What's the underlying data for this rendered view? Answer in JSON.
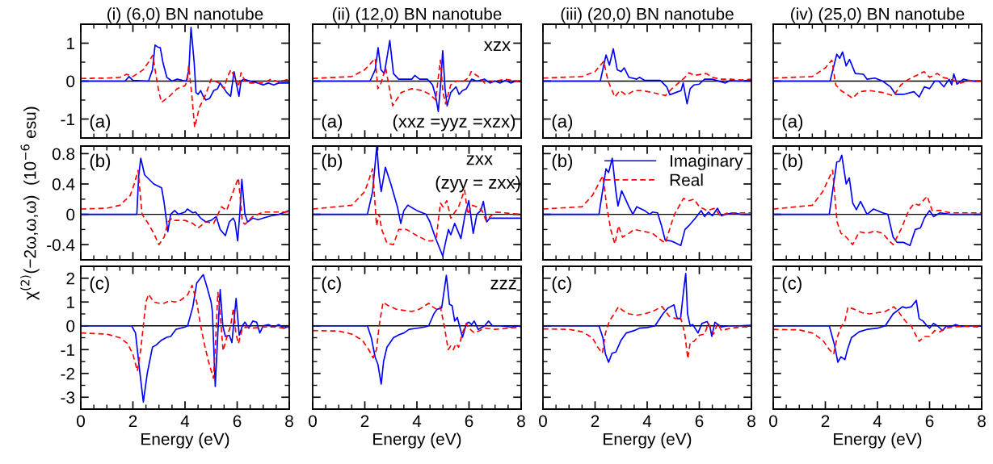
{
  "chart_data": [
    {
      "type": "line",
      "title": "(i) (6,0) BN nanotube",
      "xlim": [
        0,
        8
      ],
      "xticks": [
        0,
        2,
        4,
        6,
        8
      ],
      "ylim": [
        -1.5,
        1.5
      ],
      "yticks": [
        -1,
        0,
        1
      ],
      "tick_labels": "y",
      "legend": false,
      "ref_lines": [
        {
          "axis": "y",
          "value": 0,
          "color": "#000000"
        }
      ],
      "annotations": [
        "(a)"
      ],
      "series": [
        {
          "color": "#0000ff",
          "line_style": "solid",
          "x": [
            0,
            1.7,
            1.85,
            2.0,
            2.6,
            2.75,
            2.85,
            2.95,
            3.05,
            3.15,
            3.3,
            3.5,
            3.7,
            3.9,
            4.05,
            4.15,
            4.23,
            4.35,
            4.42,
            4.5,
            4.6,
            4.7,
            4.8,
            4.95,
            5.1,
            5.25,
            5.35,
            5.45,
            5.6,
            5.75,
            5.88,
            5.98,
            6.07,
            6.15,
            6.25,
            6.5,
            6.8,
            7.0,
            7.2,
            7.4,
            7.6,
            7.8,
            8.0
          ],
          "values": [
            0,
            0,
            0.12,
            0.02,
            0,
            0.3,
            0.95,
            0.9,
            0.88,
            0.5,
            0.1,
            0,
            0.05,
            0.02,
            0,
            0.3,
            1.42,
            0.5,
            -0.3,
            -0.35,
            -0.25,
            -0.4,
            -0.5,
            -0.45,
            -0.25,
            -0.2,
            -0.05,
            -0.15,
            -0.3,
            -0.4,
            0.25,
            -0.1,
            -0.4,
            0,
            0.05,
            0,
            -0.05,
            -0.1,
            -0.05,
            -0.1,
            -0.05,
            -0.05,
            -0.05
          ]
        },
        {
          "color": "#ff0000",
          "line_style": "dashed",
          "x": [
            0,
            1.0,
            1.5,
            1.76,
            2.0,
            2.4,
            2.6,
            2.76,
            2.9,
            3.0,
            3.1,
            3.4,
            3.7,
            4.0,
            4.08,
            4.14,
            4.25,
            4.37,
            4.55,
            4.8,
            5.0,
            5.3,
            5.5,
            5.62,
            5.76,
            5.95,
            6.05,
            6.15,
            6.3,
            6.5,
            7.0,
            7.3,
            7.6,
            8.0
          ],
          "values": [
            0.07,
            0.08,
            0.1,
            0.18,
            0.12,
            0.3,
            0.5,
            0.68,
            0.1,
            -0.3,
            -0.56,
            -0.4,
            -0.2,
            -0.12,
            0,
            0.4,
            -0.3,
            -1.22,
            -0.7,
            -0.35,
            0.05,
            -0.05,
            -0.2,
            0.1,
            0.3,
            0.05,
            -0.15,
            0.22,
            0,
            -0.05,
            -0.05,
            0.05,
            -0.02,
            0.05
          ]
        }
      ]
    },
    {
      "type": "line",
      "title": "(ii) (12,0) BN nanotube",
      "xlim": [
        0,
        8
      ],
      "xticks": [
        0,
        2,
        4,
        6,
        8
      ],
      "ylim": [
        -1.5,
        1.5
      ],
      "yticks": [
        -1,
        0,
        1
      ],
      "tick_labels": false,
      "legend": false,
      "ref_lines": [
        {
          "axis": "y",
          "value": 0,
          "color": "#000000"
        }
      ],
      "annotations": [
        "(a)",
        "xzx",
        "(xxz =yyz =xzx)"
      ],
      "series": [
        {
          "color": "#0000ff",
          "line_style": "solid",
          "x": [
            0,
            2.2,
            2.4,
            2.51,
            2.62,
            2.75,
            2.96,
            3.1,
            3.3,
            3.8,
            3.92,
            4.1,
            4.4,
            4.6,
            4.72,
            4.82,
            4.92,
            4.99,
            5.08,
            5.16,
            5.3,
            5.5,
            5.62,
            5.75,
            5.9,
            6.1,
            6.3,
            6.6,
            6.8,
            7.0,
            7.2,
            7.4,
            7.6,
            7.8,
            8.0
          ],
          "values": [
            0,
            0,
            0.3,
            0.88,
            0.3,
            0.2,
            1.07,
            0.2,
            0.05,
            0.05,
            0.15,
            0.05,
            0.05,
            -0.1,
            -0.4,
            -0.8,
            0,
            0.8,
            -0.2,
            -0.65,
            -0.3,
            -0.15,
            -0.35,
            -0.25,
            -0.2,
            0.05,
            0,
            0.05,
            -0.05,
            0,
            -0.05,
            0.02,
            -0.05,
            0,
            -0.02
          ]
        },
        {
          "color": "#ff0000",
          "line_style": "dashed",
          "x": [
            0,
            1.5,
            2.0,
            2.4,
            2.5,
            2.6,
            2.8,
            3.0,
            3.07,
            3.4,
            3.8,
            4.2,
            4.5,
            4.72,
            4.9,
            5.0,
            5.1,
            5.3,
            5.5,
            5.8,
            6.0,
            6.08,
            6.4,
            6.6,
            7.0,
            7.4,
            7.8,
            8.0
          ],
          "values": [
            0.07,
            0.12,
            0.3,
            0.6,
            -0.2,
            -0.1,
            0.35,
            -0.4,
            -0.65,
            -0.3,
            -0.2,
            -0.25,
            -0.35,
            -0.5,
            0.55,
            -0.3,
            -0.6,
            -0.1,
            0,
            0,
            0.1,
            0.25,
            0.1,
            -0.05,
            0,
            0.05,
            0,
            0
          ]
        }
      ]
    },
    {
      "type": "line",
      "title": "(iii) (20,0) BN nanotube",
      "xlim": [
        0,
        8
      ],
      "xticks": [
        0,
        2,
        4,
        6,
        8
      ],
      "ylim": [
        -1.5,
        1.5
      ],
      "yticks": [
        -1,
        0,
        1
      ],
      "tick_labels": false,
      "legend": false,
      "ref_lines": [
        {
          "axis": "y",
          "value": 0,
          "color": "#000000"
        }
      ],
      "annotations": [
        "(a)"
      ],
      "series": [
        {
          "color": "#0000ff",
          "line_style": "solid",
          "x": [
            0,
            2.2,
            2.42,
            2.55,
            2.7,
            2.85,
            3.0,
            3.12,
            3.3,
            3.6,
            3.7,
            3.9,
            4.5,
            4.75,
            4.87,
            5.1,
            5.3,
            5.38,
            5.53,
            5.65,
            5.8,
            6.0,
            6.2,
            6.5,
            7.0,
            7.2,
            7.5,
            8.0
          ],
          "values": [
            0,
            0,
            0.69,
            0.42,
            0.85,
            0.3,
            0.25,
            0.35,
            0.1,
            0.05,
            0.1,
            0.02,
            0.02,
            -0.15,
            -0.36,
            -0.3,
            -0.25,
            -0.05,
            -0.6,
            -0.2,
            -0.1,
            -0.08,
            0.05,
            0.05,
            -0.05,
            0.02,
            0,
            0.02
          ]
        },
        {
          "color": "#ff0000",
          "line_style": "dashed",
          "x": [
            0,
            1.5,
            2.0,
            2.33,
            2.5,
            2.76,
            2.95,
            3.2,
            3.5,
            3.8,
            4.2,
            4.5,
            4.7,
            4.95,
            5.2,
            5.45,
            5.61,
            5.8,
            6.27,
            6.5,
            6.8,
            7.2,
            7.6,
            8.0
          ],
          "values": [
            0.08,
            0.12,
            0.25,
            0.52,
            0,
            -0.42,
            -0.25,
            -0.37,
            -0.25,
            -0.25,
            -0.3,
            -0.35,
            -0.38,
            -0.2,
            -0.05,
            0.1,
            0.22,
            0.15,
            0.2,
            0.1,
            0.05,
            0.05,
            0.03,
            0.05
          ]
        }
      ]
    },
    {
      "type": "line",
      "title": "(iv) (25,0) BN nanotube",
      "xlim": [
        0,
        8
      ],
      "xticks": [
        0,
        2,
        4,
        6,
        8
      ],
      "ylim": [
        -1.5,
        1.5
      ],
      "yticks": [
        -1,
        0,
        1
      ],
      "tick_labels": false,
      "legend": false,
      "ref_lines": [
        {
          "axis": "y",
          "value": 0,
          "color": "#000000"
        }
      ],
      "annotations": [
        "(a)"
      ],
      "series": [
        {
          "color": "#0000ff",
          "line_style": "solid",
          "x": [
            0,
            2.18,
            2.44,
            2.55,
            2.66,
            2.8,
            2.93,
            3.15,
            3.46,
            3.6,
            3.9,
            4.2,
            4.5,
            4.7,
            5.0,
            5.4,
            5.6,
            5.8,
            6.0,
            6.2,
            6.35,
            6.55,
            6.75,
            6.85,
            6.93,
            7.05,
            7.3,
            7.6,
            8.0
          ],
          "values": [
            0,
            0,
            0.71,
            0.6,
            0.77,
            0.4,
            0.57,
            0.2,
            0.18,
            0.05,
            0.08,
            0,
            -0.15,
            -0.35,
            -0.35,
            -0.28,
            -0.42,
            -0.15,
            -0.2,
            0,
            0,
            -0.15,
            0.05,
            -0.1,
            0.19,
            -0.08,
            0.05,
            0,
            0
          ]
        },
        {
          "color": "#ff0000",
          "line_style": "dashed",
          "x": [
            0,
            1.5,
            2.0,
            2.25,
            2.4,
            2.6,
            3.05,
            3.3,
            3.7,
            4.2,
            4.62,
            4.9,
            5.2,
            5.5,
            5.79,
            6.0,
            6.3,
            6.5,
            6.8,
            7.2,
            7.5,
            8.0
          ],
          "values": [
            0.08,
            0.12,
            0.35,
            0.55,
            -0.1,
            -0.25,
            -0.45,
            -0.28,
            -0.25,
            -0.3,
            -0.39,
            -0.1,
            0.05,
            0.15,
            0.25,
            0.1,
            0.2,
            0.1,
            0.05,
            -0.05,
            0.02,
            0
          ]
        }
      ]
    },
    {
      "type": "line",
      "ylabel": "χ$^{(2)}$(−2ω,ω,ω)  (10$^{−6}$ esu)",
      "xlim": [
        0,
        8
      ],
      "xticks": [
        0,
        2,
        4,
        6,
        8
      ],
      "ylim": [
        -0.6,
        0.9
      ],
      "yticks": [
        -0.4,
        0,
        0.4,
        0.8
      ],
      "tick_labels": "y",
      "legend": false,
      "ref_lines": [
        {
          "axis": "y",
          "value": 0,
          "color": "#000000"
        }
      ],
      "annotations": [
        "(b)"
      ],
      "series": [
        {
          "color": "#0000ff",
          "line_style": "solid",
          "x": [
            0,
            2.05,
            2.15,
            2.22,
            2.3,
            2.45,
            2.8,
            3.1,
            3.2,
            3.34,
            3.45,
            3.6,
            3.75,
            4.0,
            4.09,
            4.3,
            4.4,
            4.6,
            4.8,
            5.0,
            5.2,
            5.35,
            5.55,
            5.7,
            5.85,
            5.92,
            6.02,
            6.1,
            6.18,
            6.3,
            6.4,
            6.6,
            6.8,
            7.0,
            7.3,
            7.6,
            8.0
          ],
          "values": [
            0,
            0,
            0,
            0.5,
            0.74,
            0.52,
            0.4,
            0.35,
            0.15,
            -0.23,
            0,
            0.05,
            0,
            0.03,
            0.07,
            0.02,
            0.03,
            -0.05,
            -0.1,
            -0.08,
            -0.03,
            -0.2,
            -0.28,
            -0.1,
            -0.05,
            -0.1,
            -0.35,
            0,
            0.46,
            0,
            -0.1,
            -0.05,
            -0.07,
            -0.05,
            -0.02,
            0,
            0.05
          ]
        },
        {
          "color": "#ff0000",
          "line_style": "dashed",
          "x": [
            0,
            1.0,
            1.5,
            1.9,
            2.05,
            2.2,
            2.35,
            2.55,
            2.8,
            3.0,
            3.2,
            3.35,
            3.5,
            3.6,
            4.0,
            4.3,
            4.5,
            4.8,
            5.1,
            5.4,
            5.6,
            5.75,
            5.9,
            6.05,
            6.2,
            6.3,
            6.6,
            6.8,
            7.0,
            7.5,
            8.0
          ],
          "values": [
            0.07,
            0.08,
            0.12,
            0.25,
            0.4,
            0.58,
            0,
            -0.1,
            -0.25,
            -0.4,
            -0.3,
            -0.1,
            -0.05,
            -0.08,
            -0.08,
            -0.12,
            -0.18,
            -0.1,
            -0.12,
            0.1,
            0.05,
            0.2,
            0.35,
            0.48,
            -0.1,
            -0.13,
            -0.03,
            0,
            0.03,
            0.03,
            0.03
          ]
        }
      ]
    },
    {
      "type": "line",
      "xlim": [
        0,
        8
      ],
      "xticks": [
        0,
        2,
        4,
        6,
        8
      ],
      "ylim": [
        -0.6,
        0.9
      ],
      "yticks": [
        -0.4,
        0,
        0.4,
        0.8
      ],
      "tick_labels": false,
      "legend": false,
      "ref_lines": [
        {
          "axis": "y",
          "value": 0,
          "color": "#000000"
        }
      ],
      "annotations": [
        "(b)",
        "zxx",
        "(zyy = zxx)"
      ],
      "series": [
        {
          "color": "#0000ff",
          "line_style": "solid",
          "x": [
            0,
            2.1,
            2.3,
            2.46,
            2.55,
            2.63,
            2.79,
            3.0,
            3.25,
            3.38,
            3.5,
            3.65,
            4.0,
            4.35,
            4.5,
            4.7,
            4.99,
            5.08,
            5.21,
            5.3,
            5.45,
            5.69,
            5.85,
            5.99,
            6.16,
            6.3,
            6.45,
            6.55,
            6.68,
            6.8,
            7.2,
            8.0
          ],
          "values": [
            0,
            0,
            0.3,
            0.9,
            0.5,
            0.3,
            0.62,
            0.4,
            0.1,
            -0.12,
            0.05,
            0.12,
            0.05,
            0,
            -0.1,
            -0.3,
            -0.55,
            -0.4,
            -0.2,
            -0.27,
            -0.12,
            -0.32,
            0,
            0.18,
            -0.25,
            0,
            0.05,
            0.17,
            -0.1,
            -0.05,
            -0.05,
            -0.05
          ]
        },
        {
          "color": "#ff0000",
          "line_style": "dashed",
          "x": [
            0,
            1.5,
            2.0,
            2.3,
            2.45,
            2.55,
            2.65,
            2.85,
            3.1,
            3.3,
            3.6,
            4.0,
            4.4,
            4.6,
            4.75,
            4.9,
            5.0,
            5.15,
            5.3,
            5.6,
            5.83,
            5.95,
            6.1,
            6.3,
            6.5,
            6.65,
            7.0,
            8.0
          ],
          "values": [
            0.07,
            0.12,
            0.3,
            0.6,
            -0.15,
            0,
            -0.2,
            -0.38,
            -0.4,
            -0.2,
            -0.2,
            -0.28,
            -0.35,
            -0.35,
            -0.3,
            0.15,
            0.1,
            0.18,
            -0.05,
            0.1,
            0.32,
            0,
            0.12,
            0.1,
            0.05,
            -0.08,
            0.03,
            0
          ]
        }
      ]
    },
    {
      "type": "line",
      "xlim": [
        0,
        8
      ],
      "xticks": [
        0,
        2,
        4,
        6,
        8
      ],
      "ylim": [
        -0.6,
        0.9
      ],
      "yticks": [
        -0.4,
        0,
        0.4,
        0.8
      ],
      "tick_labels": false,
      "legend": "top right",
      "ref_lines": [
        {
          "axis": "y",
          "value": 0,
          "color": "#000000"
        }
      ],
      "annotations": [
        "(b)"
      ],
      "series": [
        {
          "name": "Imaginary",
          "color": "#0000ff",
          "line_style": "solid",
          "x": [
            0,
            2.15,
            2.42,
            2.52,
            2.66,
            2.8,
            2.88,
            3.02,
            3.3,
            3.45,
            3.6,
            3.9,
            4.1,
            4.2,
            4.4,
            4.55,
            4.69,
            4.9,
            5.05,
            5.29,
            5.45,
            5.6,
            5.85,
            6.07,
            6.2,
            6.35,
            6.5,
            6.7,
            6.85,
            7.0,
            7.3,
            7.6,
            8.0
          ],
          "values": [
            0,
            0,
            0.6,
            0.55,
            0.74,
            0.3,
            0.11,
            0.31,
            0.1,
            0,
            0.1,
            0.05,
            0,
            0.03,
            0.02,
            -0.15,
            -0.34,
            -0.35,
            -0.37,
            -0.41,
            -0.2,
            -0.15,
            -0.05,
            0.05,
            -0.03,
            0.03,
            -0.02,
            0.08,
            -0.02,
            0,
            0.02,
            0,
            0
          ]
        },
        {
          "name": "Real",
          "color": "#ff0000",
          "line_style": "dashed",
          "x": [
            0,
            1.5,
            1.9,
            2.3,
            2.45,
            2.6,
            2.76,
            2.9,
            3.05,
            3.3,
            3.5,
            3.8,
            4.2,
            4.57,
            4.7,
            4.9,
            5.05,
            5.39,
            5.6,
            5.8,
            6.0,
            6.3,
            6.6,
            6.8,
            7.1,
            7.5,
            8.0
          ],
          "values": [
            0.07,
            0.1,
            0.25,
            0.51,
            0.1,
            -0.2,
            -0.39,
            -0.15,
            -0.3,
            -0.25,
            -0.2,
            -0.22,
            -0.25,
            -0.35,
            -0.38,
            -0.15,
            0,
            0.21,
            0.18,
            0.2,
            0.1,
            0.05,
            0.08,
            -0.02,
            0.02,
            0.02,
            0.02
          ]
        }
      ]
    },
    {
      "type": "line",
      "xlim": [
        0,
        8
      ],
      "xticks": [
        0,
        2,
        4,
        6,
        8
      ],
      "ylim": [
        -0.6,
        0.9
      ],
      "yticks": [
        -0.4,
        0,
        0.4,
        0.8
      ],
      "tick_labels": false,
      "legend": false,
      "ref_lines": [
        {
          "axis": "y",
          "value": 0,
          "color": "#000000"
        }
      ],
      "annotations": [
        "(b)"
      ],
      "series": [
        {
          "color": "#0000ff",
          "line_style": "solid",
          "x": [
            0,
            2.15,
            2.44,
            2.55,
            2.63,
            2.8,
            2.92,
            3.05,
            3.19,
            3.35,
            3.6,
            3.85,
            4.2,
            4.4,
            4.6,
            4.75,
            5.0,
            5.25,
            5.45,
            5.65,
            5.8,
            6.0,
            6.15,
            6.4,
            6.8,
            7.5,
            8.0
          ],
          "values": [
            0,
            0,
            0.69,
            0.7,
            0.78,
            0.4,
            0.48,
            0.15,
            0.06,
            0.17,
            0,
            0.07,
            0.02,
            0,
            -0.3,
            -0.37,
            -0.37,
            -0.41,
            -0.2,
            -0.18,
            -0.05,
            0.05,
            -0.03,
            0.02,
            0,
            0,
            0
          ]
        },
        {
          "color": "#ff0000",
          "line_style": "dashed",
          "x": [
            0,
            1.5,
            1.9,
            2.28,
            2.45,
            2.6,
            2.8,
            3.05,
            3.3,
            3.6,
            3.9,
            4.2,
            4.45,
            4.6,
            4.9,
            5.2,
            5.4,
            5.6,
            5.91,
            6.1,
            6.4,
            6.8,
            7.2,
            8.0
          ],
          "values": [
            0.07,
            0.12,
            0.3,
            0.58,
            -0.1,
            -0.25,
            -0.3,
            -0.4,
            -0.23,
            -0.25,
            -0.22,
            -0.25,
            -0.35,
            -0.4,
            -0.2,
            0.05,
            0.14,
            0.12,
            0.24,
            0.05,
            0.05,
            0.02,
            0.02,
            0.02
          ]
        }
      ]
    },
    {
      "type": "line",
      "xlabel": "Energy (eV)",
      "xlim": [
        0,
        8
      ],
      "xticks": [
        0,
        2,
        4,
        6,
        8
      ],
      "ylim": [
        -3.5,
        2.5
      ],
      "yticks": [
        -3,
        -2,
        -1,
        0,
        1,
        2
      ],
      "legend": false,
      "ref_lines": [
        {
          "axis": "y",
          "value": 0,
          "color": "#000000"
        }
      ],
      "annotations": [
        "(c)"
      ],
      "series": [
        {
          "color": "#0000ff",
          "line_style": "solid",
          "x": [
            0,
            1.95,
            2.1,
            2.25,
            2.4,
            2.55,
            2.75,
            2.9,
            3.1,
            3.3,
            3.45,
            3.65,
            4.0,
            4.1,
            4.3,
            4.45,
            4.7,
            4.85,
            5.0,
            5.05,
            5.16,
            5.25,
            5.35,
            5.45,
            5.55,
            5.7,
            5.8,
            5.96,
            6.08,
            6.2,
            6.3,
            6.45,
            6.6,
            6.75,
            6.87,
            7.0,
            7.2,
            7.4,
            7.6,
            7.8,
            8.0
          ],
          "values": [
            0,
            0,
            -0.3,
            -1.8,
            -3.2,
            -2.0,
            -0.9,
            -0.8,
            -0.6,
            -0.48,
            -0.45,
            -0.15,
            -0.05,
            0,
            0.8,
            1.8,
            2.15,
            1.6,
            1.0,
            0.6,
            -2.55,
            -0.5,
            1.52,
            0,
            -0.45,
            -0.4,
            -0.7,
            1.15,
            -0.4,
            0,
            0.15,
            -0.1,
            0.2,
            0.15,
            -0.3,
            0,
            0.05,
            -0.05,
            0.05,
            -0.1,
            0
          ]
        },
        {
          "color": "#ff0000",
          "line_style": "dashed",
          "x": [
            0,
            1.0,
            1.5,
            1.8,
            2.0,
            2.1,
            2.17,
            2.3,
            2.4,
            2.5,
            2.6,
            2.8,
            3.0,
            3.2,
            3.4,
            3.6,
            3.8,
            4.1,
            4.27,
            4.45,
            4.6,
            4.75,
            4.9,
            5.09,
            5.18,
            5.26,
            5.35,
            5.46,
            5.6,
            5.75,
            5.86,
            5.95,
            6.05,
            6.2,
            6.4,
            6.6,
            7.0,
            7.4,
            7.8,
            8.0
          ],
          "values": [
            -0.3,
            -0.35,
            -0.5,
            -0.75,
            -1.2,
            -1.6,
            -1.9,
            -1.0,
            0,
            1.0,
            1.32,
            1.0,
            0.95,
            0.95,
            1.05,
            1.0,
            1.05,
            1.3,
            1.7,
            1.0,
            0,
            -0.8,
            -1.5,
            -2.2,
            -0.5,
            1.4,
            0.5,
            -1.05,
            -0.5,
            0,
            0.75,
            -0.3,
            -0.75,
            -0.1,
            -0.05,
            -0.1,
            -0.05,
            -0.05,
            -0.1,
            -0.05
          ]
        }
      ]
    },
    {
      "type": "line",
      "xlabel": "Energy (eV)",
      "xlim": [
        0,
        8
      ],
      "xticks": [
        0,
        2,
        4,
        6,
        8
      ],
      "ylim": [
        -3.5,
        2.5
      ],
      "yticks": [
        -3,
        -2,
        -1,
        0,
        1,
        2
      ],
      "tick_labels": "x",
      "legend": false,
      "ref_lines": [
        {
          "axis": "y",
          "value": 0,
          "color": "#000000"
        }
      ],
      "annotations": [
        "(c)",
        "zzz"
      ],
      "series": [
        {
          "color": "#0000ff",
          "line_style": "solid",
          "x": [
            0,
            2.1,
            2.25,
            2.4,
            2.5,
            2.63,
            2.72,
            2.85,
            3.1,
            3.3,
            3.5,
            3.7,
            4.0,
            4.3,
            4.45,
            4.65,
            4.77,
            4.95,
            5.13,
            5.25,
            5.35,
            5.45,
            5.55,
            5.75,
            5.9,
            6.0,
            6.1,
            6.2,
            6.35,
            6.6,
            6.75,
            6.9,
            7.2,
            7.6,
            8.0
          ],
          "values": [
            0,
            0,
            -0.5,
            -1.33,
            -1.6,
            -2.45,
            -1.5,
            -0.9,
            -0.5,
            -0.38,
            -0.3,
            -0.15,
            -0.1,
            -0.05,
            0,
            0.5,
            0.69,
            0.75,
            2.12,
            0.9,
            0.85,
            0.2,
            0.35,
            -0.48,
            0.1,
            0.15,
            0.05,
            0.2,
            -0.15,
            0,
            0.2,
            0,
            0,
            -0.05,
            0
          ]
        },
        {
          "color": "#ff0000",
          "line_style": "dashed",
          "x": [
            0,
            1.0,
            1.5,
            1.9,
            2.15,
            2.32,
            2.45,
            2.55,
            2.7,
            2.9,
            3.2,
            3.5,
            3.8,
            4.1,
            4.46,
            4.6,
            4.75,
            4.9,
            5.05,
            5.2,
            5.3,
            5.4,
            5.5,
            5.6,
            5.75,
            5.9,
            6.0,
            6.2,
            6.4,
            6.6,
            7.0,
            7.5,
            8.0
          ],
          "values": [
            -0.2,
            -0.22,
            -0.35,
            -0.6,
            -1.0,
            -1.35,
            -1.0,
            0,
            0.99,
            0.85,
            0.7,
            0.65,
            0.6,
            0.7,
            0.95,
            0.8,
            0.7,
            0.8,
            0,
            -1.0,
            -0.85,
            -1.0,
            -0.75,
            -0.9,
            -0.3,
            0.1,
            -0.1,
            -0.3,
            -0.2,
            -0.1,
            -0.15,
            -0.1,
            -0.05
          ]
        }
      ]
    },
    {
      "type": "line",
      "xlabel": "Energy (eV)",
      "xlim": [
        0,
        8
      ],
      "xticks": [
        0,
        2,
        4,
        6,
        8
      ],
      "ylim": [
        -3.5,
        2.5
      ],
      "yticks": [
        -3,
        -2,
        -1,
        0,
        1,
        2
      ],
      "tick_labels": "x",
      "legend": false,
      "ref_lines": [
        {
          "axis": "y",
          "value": 0,
          "color": "#000000"
        }
      ],
      "annotations": [
        "(c)"
      ],
      "series": [
        {
          "color": "#0000ff",
          "line_style": "solid",
          "x": [
            0,
            2.15,
            2.3,
            2.4,
            2.52,
            2.65,
            2.8,
            3.0,
            3.2,
            3.5,
            3.7,
            4.0,
            4.3,
            4.6,
            4.8,
            5.03,
            5.15,
            5.28,
            5.4,
            5.48,
            5.55,
            5.65,
            5.75,
            5.95,
            6.1,
            6.3,
            6.42,
            6.48,
            6.6,
            6.85,
            7.1,
            7.5,
            8.0
          ],
          "values": [
            0,
            0,
            -0.5,
            -1.19,
            -1.53,
            -1.15,
            -1.1,
            -0.6,
            -0.3,
            -0.2,
            -0.1,
            -0.07,
            0,
            0.5,
            0.75,
            0.88,
            0.3,
            0.3,
            1.5,
            2.2,
            0.5,
            0,
            0.05,
            -0.3,
            0.1,
            0.18,
            -0.1,
            -0.44,
            0.15,
            -0.05,
            0,
            0,
            0.02
          ]
        },
        {
          "color": "#ff0000",
          "line_style": "dashed",
          "x": [
            0,
            1.0,
            1.5,
            1.9,
            2.1,
            2.28,
            2.4,
            2.55,
            2.7,
            2.9,
            3.05,
            3.3,
            3.6,
            3.9,
            4.2,
            4.57,
            4.85,
            5.1,
            5.25,
            5.35,
            5.45,
            5.56,
            5.65,
            5.8,
            6.0,
            6.2,
            6.35,
            6.55,
            6.7,
            6.85,
            7.2,
            7.6,
            8.0
          ],
          "values": [
            -0.13,
            -0.15,
            -0.25,
            -0.5,
            -0.9,
            -1.15,
            -0.3,
            0.2,
            0.45,
            0.8,
            0.65,
            0.5,
            0.45,
            0.5,
            0.6,
            0.81,
            0.4,
            0.3,
            0.42,
            0.1,
            -0.4,
            -1.38,
            -0.7,
            -0.65,
            -0.4,
            -0.35,
            0.1,
            -0.35,
            0.1,
            -0.2,
            -0.1,
            -0.05,
            -0.05
          ]
        }
      ]
    },
    {
      "type": "line",
      "xlabel": "Energy (eV)",
      "xlim": [
        0,
        8
      ],
      "xticks": [
        0,
        2,
        4,
        6,
        8
      ],
      "ylim": [
        -3.5,
        2.5
      ],
      "yticks": [
        -3,
        -2,
        -1,
        0,
        1,
        2
      ],
      "tick_labels": "x",
      "legend": false,
      "ref_lines": [
        {
          "axis": "y",
          "value": 0,
          "color": "#000000"
        }
      ],
      "annotations": [
        "(c)"
      ],
      "series": [
        {
          "color": "#0000ff",
          "line_style": "solid",
          "x": [
            0,
            2.15,
            2.35,
            2.48,
            2.6,
            2.75,
            2.85,
            3.0,
            3.3,
            3.6,
            4.0,
            4.3,
            4.6,
            4.96,
            5.1,
            5.3,
            5.49,
            5.6,
            5.75,
            5.9,
            6.0,
            6.15,
            6.3,
            6.5,
            6.65,
            6.85,
            7.0,
            7.2,
            7.6,
            8.0
          ],
          "values": [
            0,
            0,
            -0.8,
            -1.53,
            -1.3,
            -1.42,
            -1.0,
            -0.5,
            -0.25,
            -0.15,
            -0.1,
            0,
            0.5,
            0.8,
            0.75,
            0.8,
            1.07,
            0.3,
            0.2,
            0,
            -0.1,
            0.1,
            0,
            -0.2,
            0,
            -0.02,
            0.05,
            -0.03,
            0,
            0
          ]
        },
        {
          "color": "#ff0000",
          "line_style": "dashed",
          "x": [
            0,
            1.0,
            1.5,
            1.9,
            2.15,
            2.32,
            2.45,
            2.6,
            2.75,
            2.87,
            3.1,
            3.4,
            3.7,
            4.0,
            4.3,
            4.63,
            4.8,
            5.0,
            5.15,
            5.3,
            5.45,
            5.6,
            5.8,
            6.0,
            6.2,
            6.4,
            6.6,
            6.9,
            7.3,
            8.0
          ],
          "values": [
            -0.15,
            -0.17,
            -0.3,
            -0.6,
            -1.0,
            -1.19,
            -0.5,
            -0.05,
            0.2,
            0.79,
            0.7,
            0.55,
            0.5,
            0.55,
            0.6,
            0.8,
            0.6,
            0.3,
            0.1,
            0,
            -0.35,
            -0.65,
            -0.45,
            -0.45,
            -0.2,
            -0.25,
            -0.1,
            -0.05,
            -0.02,
            -0.05
          ]
        }
      ]
    }
  ]
}
